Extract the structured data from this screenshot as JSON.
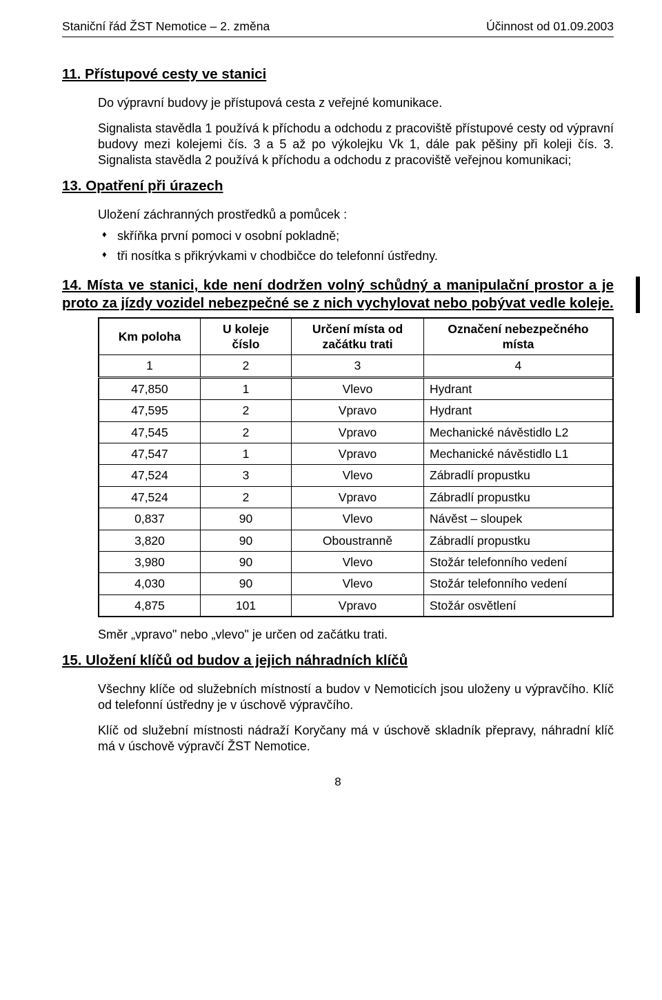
{
  "header": {
    "left": "Staniční řád ŽST Nemotice – 2. změna",
    "right": "Účinnost od 01.09.2003"
  },
  "sec11": {
    "title": "11.  Přístupové cesty ve stanici",
    "p1": "Do výpravní budovy je přístupová cesta z veřejné komunikace.",
    "p2": "Signalista stavědla 1 používá k příchodu a odchodu z pracoviště přístupové cesty od výpravní budovy mezi kolejemi čís. 3 a 5 až po výkolejku Vk 1, dále pak pěšiny při koleji čís. 3. Signalista stavědla 2 používá k příchodu a odchodu z pracoviště veřejnou komunikaci;"
  },
  "sec13": {
    "title": "13.  Opatření při úrazech",
    "intro": "Uložení záchranných prostředků a pomůcek :",
    "bullets": [
      "skříňka první pomoci v osobní pokladně;",
      "tři nosítka s přikrývkami v chodbičce do telefonní ústředny."
    ]
  },
  "sec14": {
    "title_line1": "14.  Místa ve stanici, kde není dodržen volný schůdný a manipulační prostor a je proto za jízdy vozidel nebezpečné se z nich vychylovat nebo pobývat vedle koleje.",
    "table": {
      "headers": [
        "Km poloha",
        "U koleje\nčíslo",
        "Určení místa od\nzačátku trati",
        "Označení nebezpečného\nmísta"
      ],
      "numrow": [
        "1",
        "2",
        "3",
        "4"
      ],
      "rows": [
        [
          "47,850",
          "1",
          "Vlevo",
          "Hydrant"
        ],
        [
          "47,595",
          "2",
          "Vpravo",
          "Hydrant"
        ],
        [
          "47,545",
          "2",
          "Vpravo",
          "Mechanické návěstidlo L2"
        ],
        [
          "47,547",
          "1",
          "Vpravo",
          "Mechanické návěstidlo L1"
        ],
        [
          "47,524",
          "3",
          "Vlevo",
          "Zábradlí propustku"
        ],
        [
          "47,524",
          "2",
          "Vpravo",
          "Zábradlí propustku"
        ],
        [
          "0,837",
          "90",
          "Vlevo",
          "Návěst – sloupek"
        ],
        [
          "3,820",
          "90",
          "Oboustranně",
          "Zábradlí propustku"
        ],
        [
          "3,980",
          "90",
          "Vlevo",
          "Stožár telefonního vedení"
        ],
        [
          "4,030",
          "90",
          "Vlevo",
          "Stožár telefonního vedení"
        ],
        [
          "4,875",
          "101",
          "Vpravo",
          "Stožár osvětlení"
        ]
      ]
    },
    "note": "Směr „vpravo\" nebo „vlevo\" je určen od začátku trati."
  },
  "sec15": {
    "title": "15.  Uložení klíčů od budov a jejich náhradních klíčů",
    "p1": "Všechny klíče od služebních místností a budov v Nemoticích jsou uloženy u výpravčího. Klíč od telefonní ústředny je v úschově výpravčího.",
    "p2": "Klíč od služební místnosti nádraží Koryčany má v úschově skladník přepravy, náhradní klíč má v úschově výpravčí ŽST Nemotice."
  },
  "page_number": "8"
}
